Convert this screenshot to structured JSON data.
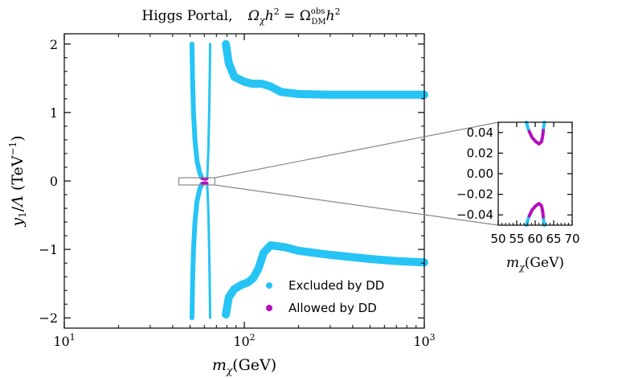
{
  "chart_data": [
    {
      "type": "scatter",
      "title_left": "Higgs Portal,",
      "title_math": "Ωχh² = Ω^obs_DM h²",
      "xlabel": "mχ(GeV)",
      "ylabel": "y₁/Λ (TeV⁻¹)",
      "xscale": "log",
      "xlim": [
        10,
        1000
      ],
      "ylim": [
        -2.15,
        2.15
      ],
      "xticks": [
        {
          "value": 10,
          "label": "10¹"
        },
        {
          "value": 100,
          "label": "10²"
        },
        {
          "value": 1000,
          "label": "10³"
        }
      ],
      "yticks": [
        {
          "value": 2,
          "label": "2"
        },
        {
          "value": 1,
          "label": "1"
        },
        {
          "value": 0,
          "label": "0"
        },
        {
          "value": -1,
          "label": "−1"
        },
        {
          "value": -2,
          "label": "−2"
        }
      ],
      "legend_position": "lower-right",
      "series": [
        {
          "name": "Excluded by DD",
          "color": "#26c4f4",
          "bands": [
            [
              [
                51.2,
                2.0
              ],
              [
                51.6,
                1.5
              ],
              [
                52.2,
                1.0
              ],
              [
                53.2,
                0.6
              ],
              [
                54.6,
                0.3
              ],
              [
                56.5,
                0.12
              ],
              [
                58.0,
                0.05
              ]
            ],
            [
              [
                51.2,
                -2.0
              ],
              [
                51.6,
                -1.5
              ],
              [
                52.2,
                -1.0
              ],
              [
                53.2,
                -0.6
              ],
              [
                54.6,
                -0.3
              ],
              [
                56.5,
                -0.12
              ],
              [
                58.0,
                -0.05
              ]
            ],
            [
              [
                64.6,
                2.0
              ],
              [
                64.3,
                1.5
              ],
              [
                63.8,
                1.0
              ],
              [
                63.2,
                0.5
              ],
              [
                62.5,
                0.15
              ],
              [
                62.1,
                0.04
              ]
            ],
            [
              [
                64.6,
                -2.0
              ],
              [
                64.3,
                -1.5
              ],
              [
                63.8,
                -1.0
              ],
              [
                63.2,
                -0.5
              ],
              [
                62.5,
                -0.15
              ],
              [
                62.1,
                -0.04
              ]
            ],
            [
              [
                79,
                2.0
              ],
              [
                82,
                1.72
              ],
              [
                88,
                1.52
              ],
              [
                100,
                1.45
              ],
              [
                110,
                1.42
              ],
              [
                125,
                1.42
              ],
              [
                140,
                1.38
              ],
              [
                160,
                1.3
              ],
              [
                200,
                1.27
              ],
              [
                300,
                1.26
              ],
              [
                500,
                1.26
              ],
              [
                700,
                1.26
              ],
              [
                1000,
                1.26
              ]
            ],
            [
              [
                79,
                -1.95
              ],
              [
                82,
                -1.7
              ],
              [
                88,
                -1.58
              ],
              [
                96,
                -1.52
              ],
              [
                105,
                -1.48
              ],
              [
                112,
                -1.42
              ],
              [
                120,
                -1.28
              ],
              [
                128,
                -1.05
              ],
              [
                140,
                -0.94
              ],
              [
                170,
                -0.97
              ],
              [
                200,
                -1.02
              ],
              [
                300,
                -1.08
              ],
              [
                500,
                -1.14
              ],
              [
                700,
                -1.17
              ],
              [
                1000,
                -1.19
              ]
            ]
          ]
        },
        {
          "name": "Allowed by DD",
          "color": "#b40fbc",
          "bands": [
            [
              [
                58.5,
                0.035
              ],
              [
                59.5,
                0.03
              ],
              [
                60.5,
                0.027
              ],
              [
                61.5,
                0.029
              ],
              [
                62.0,
                0.035
              ]
            ],
            [
              [
                58.5,
                -0.035
              ],
              [
                59.5,
                -0.03
              ],
              [
                60.5,
                -0.027
              ],
              [
                61.5,
                -0.029
              ],
              [
                62.0,
                -0.035
              ]
            ]
          ]
        }
      ]
    },
    {
      "type": "scatter",
      "role": "inset-zoom",
      "xlabel": "mχ(GeV)",
      "xlim": [
        50,
        70
      ],
      "ylim": [
        -0.05,
        0.05
      ],
      "xticks": [
        50,
        55,
        60,
        65,
        70
      ],
      "yticks": [
        {
          "value": 0.04,
          "label": "0.04"
        },
        {
          "value": 0.02,
          "label": "0.02"
        },
        {
          "value": 0.0,
          "label": "0.00"
        },
        {
          "value": -0.02,
          "label": "−0.02"
        },
        {
          "value": -0.04,
          "label": "−0.04"
        }
      ],
      "series": [
        {
          "name": "Excluded by DD",
          "color": "#26c4f4",
          "curves": [
            [
              [
                57.6,
                0.05
              ],
              [
                58.0,
                0.045
              ],
              [
                58.4,
                0.041
              ]
            ],
            [
              [
                57.6,
                -0.05
              ],
              [
                58.0,
                -0.045
              ],
              [
                58.4,
                -0.041
              ]
            ],
            [
              [
                62.2,
                0.042
              ],
              [
                62.3,
                0.046
              ],
              [
                62.5,
                0.05
              ]
            ],
            [
              [
                62.2,
                -0.042
              ],
              [
                62.3,
                -0.046
              ],
              [
                62.5,
                -0.05
              ]
            ]
          ]
        },
        {
          "name": "Allowed by DD",
          "color": "#b40fbc",
          "curves": [
            [
              [
                58.4,
                0.041
              ],
              [
                59.2,
                0.035
              ],
              [
                60.2,
                0.031
              ],
              [
                61.0,
                0.029
              ],
              [
                61.7,
                0.031
              ],
              [
                62.0,
                0.036
              ],
              [
                62.2,
                0.042
              ]
            ],
            [
              [
                58.4,
                -0.041
              ],
              [
                59.2,
                -0.035
              ],
              [
                60.2,
                -0.031
              ],
              [
                61.0,
                -0.029
              ],
              [
                61.7,
                -0.031
              ],
              [
                62.0,
                -0.036
              ],
              [
                62.2,
                -0.042
              ]
            ]
          ]
        }
      ]
    }
  ]
}
